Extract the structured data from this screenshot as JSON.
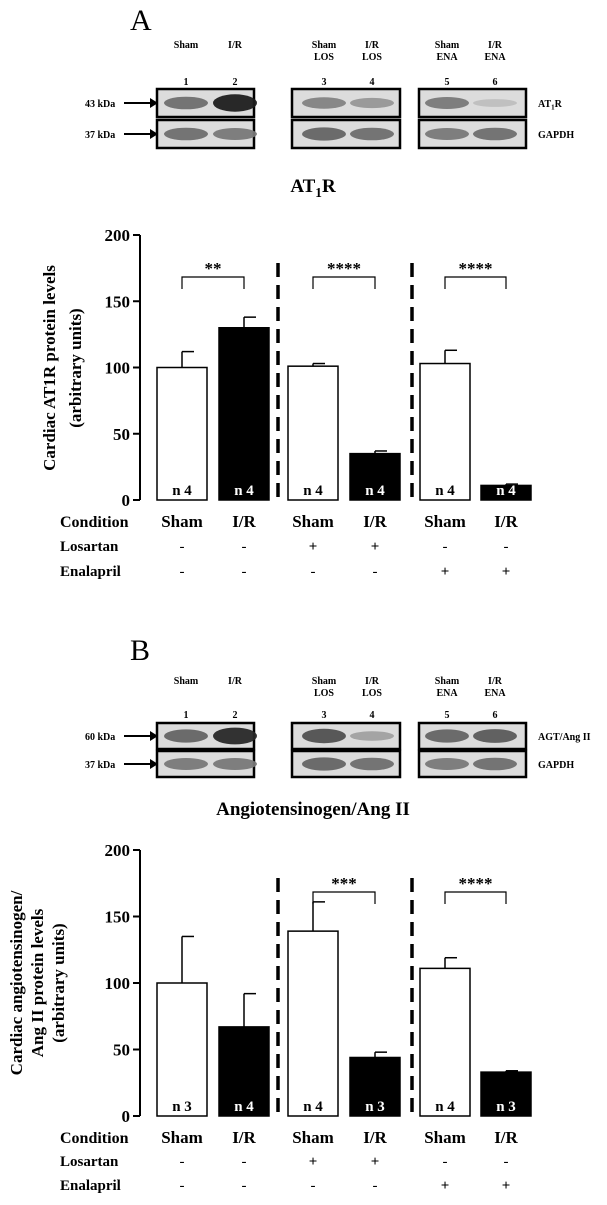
{
  "colors": {
    "white_bar": "#ffffff",
    "black_bar": "#000000",
    "axis": "#000000",
    "blot_bg": "#d6d6d6"
  },
  "panels": [
    {
      "letter": "A",
      "lanes": {
        "groups": [
          {
            "labels": [
              "Sham",
              "I/R"
            ],
            "numbers": [
              "1",
              "2"
            ]
          },
          {
            "labels": [
              "Sham\nLOS",
              "I/R\nLOS"
            ],
            "numbers": [
              "3",
              "4"
            ]
          },
          {
            "labels": [
              "Sham\nENA",
              "I/R\nENA"
            ],
            "numbers": [
              "5",
              "6"
            ]
          }
        ]
      },
      "blots": [
        {
          "marker": "43 kDa",
          "label_main": "AT",
          "label_sub": "1",
          "label_tail": "R",
          "intensity": [
            0.55,
            0.95,
            0.45,
            0.35,
            0.5,
            0.15
          ]
        },
        {
          "marker": "37 kDa",
          "label_main": "GAPDH",
          "label_sub": "",
          "label_tail": "",
          "intensity": [
            0.55,
            0.5,
            0.6,
            0.55,
            0.5,
            0.55
          ]
        }
      ],
      "chart_data": {
        "type": "bar",
        "title_main": "AT",
        "title_sub": "1",
        "title_tail": "R",
        "ylabel_lines": [
          "Cardiac AT1R protein levels",
          "(arbitrary units)"
        ],
        "ylim": [
          0,
          200
        ],
        "yticks": [
          "0",
          "50",
          "100",
          "150",
          "200"
        ],
        "categories": [
          "Sham",
          "I/R",
          "Sham",
          "I/R",
          "Sham",
          "I/R"
        ],
        "values": [
          100,
          130,
          101,
          35,
          103,
          11
        ],
        "errors": [
          12,
          8,
          2,
          2,
          10,
          1
        ],
        "fills": [
          "white",
          "black",
          "white",
          "black",
          "white",
          "black"
        ],
        "n_labels": [
          "n 4",
          "n 4",
          "n 4",
          "n 4",
          "n 4",
          "n 4"
        ],
        "significance": [
          {
            "pair": [
              0,
              1
            ],
            "label": "**"
          },
          {
            "pair": [
              2,
              3
            ],
            "label": "****"
          },
          {
            "pair": [
              4,
              5
            ],
            "label": "****"
          }
        ],
        "treatment_rows": [
          {
            "label": "Condition",
            "values": [
              "Sham",
              "I/R",
              "Sham",
              "I/R",
              "Sham",
              "I/R"
            ]
          },
          {
            "label": "Losartan",
            "values": [
              "-",
              "-",
              "+",
              "+",
              "-",
              "-"
            ]
          },
          {
            "label": "Enalapril",
            "values": [
              "-",
              "-",
              "-",
              "-",
              "+",
              "+"
            ]
          }
        ]
      }
    },
    {
      "letter": "B",
      "lanes": {
        "groups": [
          {
            "labels": [
              "Sham",
              "I/R"
            ],
            "numbers": [
              "1",
              "2"
            ]
          },
          {
            "labels": [
              "Sham\nLOS",
              "I/R\nLOS"
            ],
            "numbers": [
              "3",
              "4"
            ]
          },
          {
            "labels": [
              "Sham\nENA",
              "I/R\nENA"
            ],
            "numbers": [
              "5",
              "6"
            ]
          }
        ]
      },
      "blots": [
        {
          "marker": "60 kDa",
          "label_main": "AGT/Ang II",
          "label_sub": "",
          "label_tail": "",
          "intensity": [
            0.6,
            0.9,
            0.7,
            0.3,
            0.6,
            0.65
          ]
        },
        {
          "marker": "37 kDa",
          "label_main": "GAPDH",
          "label_sub": "",
          "label_tail": "",
          "intensity": [
            0.5,
            0.5,
            0.6,
            0.55,
            0.5,
            0.55
          ]
        }
      ],
      "chart_data": {
        "type": "bar",
        "title_main": "Angiotensinogen/Ang II",
        "title_sub": "",
        "title_tail": "",
        "ylabel_lines": [
          "Cardiac angiotensinogen/",
          "Ang II protein levels",
          "(arbitrary units)"
        ],
        "ylim": [
          0,
          200
        ],
        "yticks": [
          "0",
          "50",
          "100",
          "150",
          "200"
        ],
        "categories": [
          "Sham",
          "I/R",
          "Sham",
          "I/R",
          "Sham",
          "I/R"
        ],
        "values": [
          100,
          67,
          139,
          44,
          111,
          33
        ],
        "errors": [
          35,
          25,
          22,
          4,
          8,
          1
        ],
        "fills": [
          "white",
          "black",
          "white",
          "black",
          "white",
          "black"
        ],
        "n_labels": [
          "n 3",
          "n 4",
          "n 4",
          "n 3",
          "n 4",
          "n 3"
        ],
        "significance": [
          {
            "pair": [
              2,
              3
            ],
            "label": "***"
          },
          {
            "pair": [
              4,
              5
            ],
            "label": "****"
          }
        ],
        "treatment_rows": [
          {
            "label": "Condition",
            "values": [
              "Sham",
              "I/R",
              "Sham",
              "I/R",
              "Sham",
              "I/R"
            ]
          },
          {
            "label": "Losartan",
            "values": [
              "-",
              "-",
              "+",
              "+",
              "-",
              "-"
            ]
          },
          {
            "label": "Enalapril",
            "values": [
              "-",
              "-",
              "-",
              "-",
              "+",
              "+"
            ]
          }
        ]
      }
    }
  ]
}
